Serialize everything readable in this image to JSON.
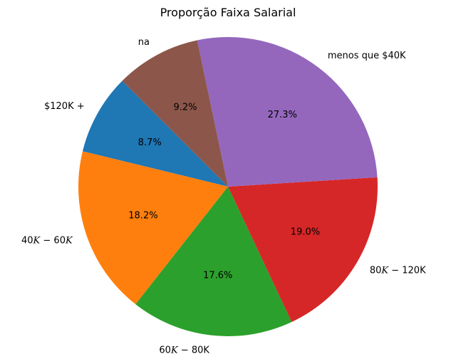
{
  "chart_data": {
    "type": "pie",
    "title": "Proporção Faixa Salarial",
    "start_angle_deg": 135,
    "direction": "counterclockwise",
    "slices": [
      {
        "label": "$120K +",
        "label_parts": [
          {
            "t": "$120K +",
            "math": false
          }
        ],
        "value": 8.7,
        "pct_label": "8.7%",
        "color": "#1f77b4"
      },
      {
        "label": "$40K-$60K",
        "label_parts": [
          {
            "t": "40",
            "math": false
          },
          {
            "t": "K",
            "math": true
          },
          {
            "t": " − ",
            "math": false
          },
          {
            "t": "60",
            "math": false
          },
          {
            "t": "K",
            "math": true
          }
        ],
        "value": 18.2,
        "pct_label": "18.2%",
        "color": "#ff7f0e"
      },
      {
        "label": "$60K-$80K",
        "label_parts": [
          {
            "t": "60",
            "math": false
          },
          {
            "t": "K",
            "math": true
          },
          {
            "t": " − ",
            "math": false
          },
          {
            "t": "80",
            "math": false
          },
          {
            "t": "K",
            "math": false
          }
        ],
        "value": 17.6,
        "pct_label": "17.6%",
        "color": "#2ca02c"
      },
      {
        "label": "$80K-$120K",
        "label_parts": [
          {
            "t": "80",
            "math": false
          },
          {
            "t": "K",
            "math": true
          },
          {
            "t": " − ",
            "math": false
          },
          {
            "t": "120",
            "math": false
          },
          {
            "t": "K",
            "math": false
          }
        ],
        "value": 19.0,
        "pct_label": "19.0%",
        "color": "#d62728"
      },
      {
        "label": "menos que $40K",
        "label_parts": [
          {
            "t": "menos que $40K",
            "math": false
          }
        ],
        "value": 27.3,
        "pct_label": "27.3%",
        "color": "#9467bd"
      },
      {
        "label": "na",
        "label_parts": [
          {
            "t": "na",
            "math": false
          }
        ],
        "value": 9.2,
        "pct_label": "9.2%",
        "color": "#8c564b"
      }
    ]
  }
}
